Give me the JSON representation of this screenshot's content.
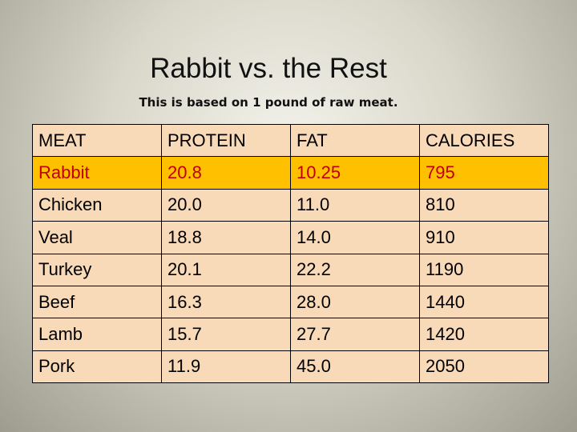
{
  "header": {
    "title": "Rabbit vs. the Rest",
    "subtitle": "This is based on 1 pound of raw meat."
  },
  "table": {
    "columns": [
      "MEAT",
      "PROTEIN",
      "FAT",
      "CALORIES"
    ],
    "rows": [
      [
        "Rabbit",
        "20.8",
        "10.25",
        "795"
      ],
      [
        "Chicken",
        "20.0",
        "11.0",
        "810"
      ],
      [
        "Veal",
        "18.8",
        "14.0",
        "910"
      ],
      [
        "Turkey",
        "20.1",
        "22.2",
        "1190"
      ],
      [
        "Beef",
        "16.3",
        "28.0",
        "1440"
      ],
      [
        "Lamb",
        "15.7",
        "27.7",
        "1420"
      ],
      [
        "Pork",
        "11.9",
        "45.0",
        "2050"
      ]
    ]
  }
}
